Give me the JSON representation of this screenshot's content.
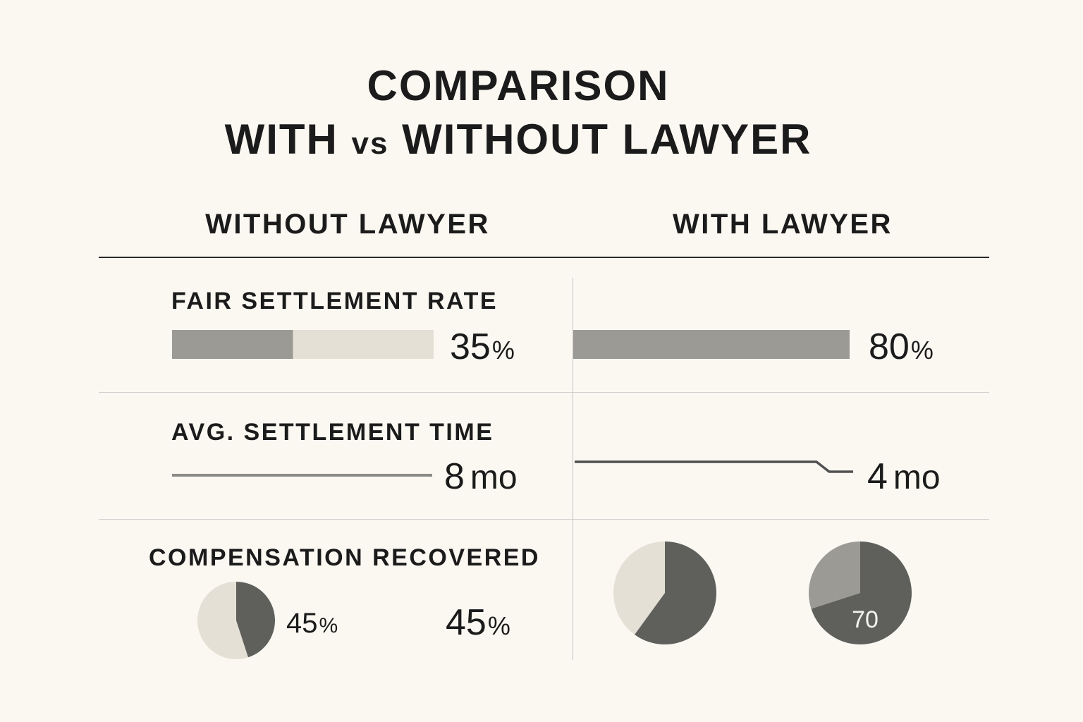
{
  "title": {
    "line1": "COMPARISON",
    "line2_a": "WITH",
    "line2_vs": "vs",
    "line2_b": "WITHOUT LAWYER"
  },
  "columns": {
    "without": "WITHOUT LAWYER",
    "with": "WITH LAWYER"
  },
  "metrics": {
    "fair_settlement": {
      "label": "FAIR SETTLEMENT RATE"
    },
    "settlement_time": {
      "label": "AVG. SETTLEMENT TIME"
    },
    "compensation": {
      "label": "COMPENSATION RECOVERED"
    }
  },
  "colors": {
    "bar_fill": "#9b9a94",
    "bar_track": "#e4e0d6",
    "line": "#8a8a86",
    "line_dark": "#505050",
    "pie_light": "#e4e0d6",
    "pie_dark": "#5f605b",
    "pie_mid": "#9b9a94"
  },
  "chart_data": [
    {
      "type": "bar",
      "title": "FAIR SETTLEMENT RATE",
      "categories": [
        "WITHOUT LAWYER",
        "WITH LAWYER"
      ],
      "values": [
        35,
        80
      ],
      "value_labels": [
        "35",
        "80"
      ],
      "unit": "%"
    },
    {
      "type": "line",
      "title": "AVG. SETTLEMENT TIME",
      "categories": [
        "WITHOUT LAWYER",
        "WITH LAWYER"
      ],
      "values": [
        8,
        4
      ],
      "value_labels": [
        "8",
        "4"
      ],
      "unit": "mo"
    },
    {
      "type": "pie",
      "title": "COMPENSATION RECOVERED",
      "pies": [
        {
          "column": "WITHOUT LAWYER",
          "value": 45
        },
        {
          "column": "WITH LAWYER",
          "value": 60
        },
        {
          "column": "WITH LAWYER",
          "value": 70,
          "label": "70"
        }
      ],
      "value_labels": [
        "45",
        "45"
      ],
      "unit": "%"
    }
  ]
}
